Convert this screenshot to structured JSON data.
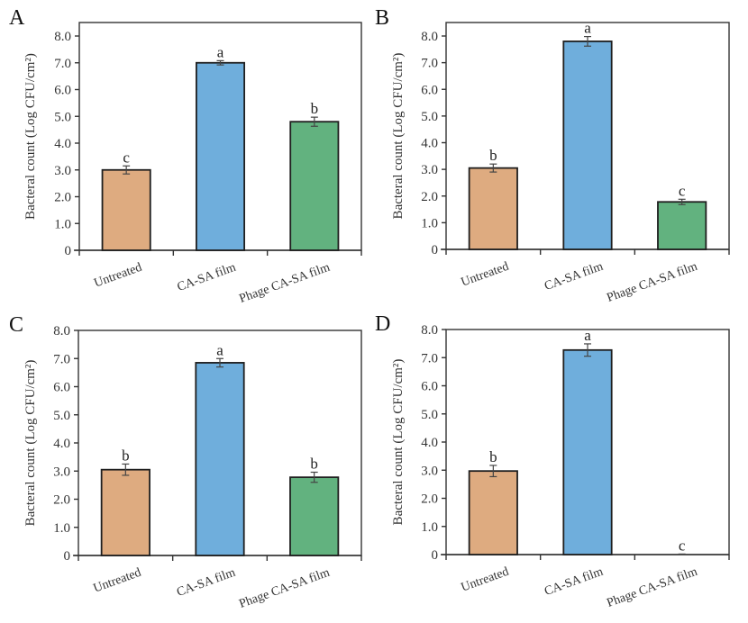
{
  "colors": {
    "Untreated": "#DEAB80",
    "CA-SA film": "#6FAEDC",
    "Phage CA-SA film": "#62B27F"
  },
  "chart_data": [
    {
      "type": "bar",
      "panel": "A",
      "title": "",
      "xlabel": "",
      "ylabel": "Bacteral count (Log CFU/cm²)",
      "categories": [
        "Untreated",
        "CA-SA film",
        "Phage CA-SA film"
      ],
      "values": [
        3.0,
        7.0,
        4.8
      ],
      "errors": [
        0.15,
        0.08,
        0.17
      ],
      "significance": [
        "c",
        "a",
        "b"
      ],
      "yticks": [
        "0",
        "1.0",
        "2.0",
        "3.0",
        "4.0",
        "5.0",
        "6.0",
        "7.0",
        "8.0"
      ],
      "ylim": [
        0,
        8.5
      ],
      "grid": false
    },
    {
      "type": "bar",
      "panel": "B",
      "title": "",
      "xlabel": "",
      "ylabel": "Bacteral count (Log CFU/cm²)",
      "categories": [
        "Untreated",
        "CA-SA film",
        "Phage CA-SA film"
      ],
      "values": [
        3.05,
        7.8,
        1.78
      ],
      "errors": [
        0.15,
        0.18,
        0.1
      ],
      "significance": [
        "b",
        "a",
        "c"
      ],
      "yticks": [
        "0",
        "1.0",
        "2.0",
        "3.0",
        "4.0",
        "5.0",
        "6.0",
        "7.0",
        "8.0"
      ],
      "ylim": [
        0,
        8.5
      ],
      "grid": false
    },
    {
      "type": "bar",
      "panel": "C",
      "title": "",
      "xlabel": "",
      "ylabel": "Bacteral count (Log CFU/cm²)",
      "categories": [
        "Untreated",
        "CA-SA film",
        "Phage CA-SA film"
      ],
      "values": [
        3.05,
        6.85,
        2.78
      ],
      "errors": [
        0.2,
        0.15,
        0.18
      ],
      "significance": [
        "b",
        "a",
        "b"
      ],
      "yticks": [
        "0",
        "1.0",
        "2.0",
        "3.0",
        "4.0",
        "5.0",
        "6.0",
        "7.0",
        "8.0"
      ],
      "ylim": [
        0,
        8.0
      ],
      "grid": false
    },
    {
      "type": "bar",
      "panel": "D",
      "title": "",
      "xlabel": "",
      "ylabel": "Bacteral count (Log CFU/cm²)",
      "categories": [
        "Untreated",
        "CA-SA film",
        "Phage CA-SA film"
      ],
      "values": [
        2.97,
        7.27,
        0.0
      ],
      "errors": [
        0.2,
        0.22,
        0.02
      ],
      "significance": [
        "b",
        "a",
        "c"
      ],
      "yticks": [
        "0",
        "1.0",
        "2.0",
        "3.0",
        "4.0",
        "5.0",
        "6.0",
        "7.0",
        "8.0"
      ],
      "ylim": [
        0,
        8.0
      ],
      "grid": false
    }
  ]
}
